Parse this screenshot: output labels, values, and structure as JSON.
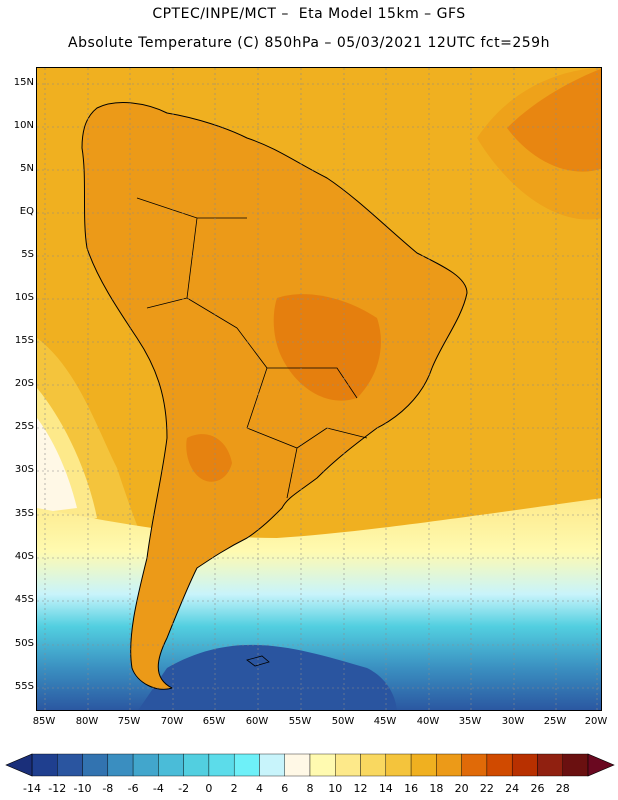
{
  "title_line1": "CPTEC/INPE/MCT –  Eta Model 15km – GFS",
  "title_line2": "Absolute Temperature (C) 850hPa – 05/03/2021 12UTC fct=259h",
  "lat_labels": [
    "15N",
    "10N",
    "5N",
    "EQ",
    "5S",
    "10S",
    "15S",
    "20S",
    "25S",
    "30S",
    "35S",
    "40S",
    "45S",
    "50S",
    "55S"
  ],
  "lon_labels": [
    "85W",
    "80W",
    "75W",
    "70W",
    "65W",
    "60W",
    "55W",
    "50W",
    "45W",
    "40W",
    "35W",
    "30W",
    "25W",
    "20W"
  ],
  "colorbar": {
    "labels": [
      "-14",
      "-12",
      "-10",
      "-8",
      "-6",
      "-4",
      "-2",
      "0",
      "2",
      "4",
      "6",
      "8",
      "10",
      "12",
      "14",
      "16",
      "18",
      "20",
      "22",
      "24",
      "26",
      "28"
    ],
    "colors": [
      "#1f3f8f",
      "#2a55a0",
      "#3273b0",
      "#3a8ec0",
      "#42a6cc",
      "#4abcd8",
      "#52cfe0",
      "#5cdcea",
      "#6ef0f8",
      "#c8f4fb",
      "#fff8e6",
      "#fffab0",
      "#fde98a",
      "#f9d860",
      "#f4c43c",
      "#f0b020",
      "#ec9a18",
      "#e06a08",
      "#d04a00",
      "#b83000",
      "#902010",
      "#6a1010"
    ],
    "low_arrow_color": "#1a2f7a",
    "high_arrow_color": "#6a0820"
  },
  "map": {
    "ocean_warm_color": "#f0b020",
    "land_color": "#ec9a18",
    "coast_color": "#000000"
  }
}
